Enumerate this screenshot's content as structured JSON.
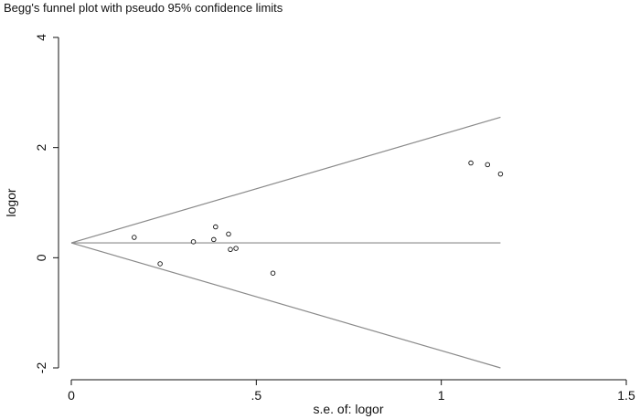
{
  "chart_data": {
    "type": "scatter",
    "title": "Begg's funnel plot with pseudo 95% confidence limits",
    "xlabel": "s.e. of: logor",
    "ylabel": "logor",
    "xlim": [
      0,
      1.5
    ],
    "ylim": [
      -2,
      4
    ],
    "x_ticks": [
      0,
      0.5,
      1,
      1.5
    ],
    "x_tick_labels": [
      "0",
      ".5",
      "1",
      "1.5"
    ],
    "y_ticks": [
      -2,
      0,
      2,
      4
    ],
    "y_tick_labels": [
      "-2",
      "0",
      "2",
      "4"
    ],
    "pooled_estimate": 0.27,
    "funnel_max_se": 1.16,
    "funnel_upper_end": 2.55,
    "funnel_lower_end": -2.0,
    "points": [
      {
        "x": 0.17,
        "y": 0.37
      },
      {
        "x": 0.24,
        "y": -0.11
      },
      {
        "x": 0.33,
        "y": 0.29
      },
      {
        "x": 0.385,
        "y": 0.33
      },
      {
        "x": 0.39,
        "y": 0.56
      },
      {
        "x": 0.425,
        "y": 0.43
      },
      {
        "x": 0.43,
        "y": 0.15
      },
      {
        "x": 0.445,
        "y": 0.17
      },
      {
        "x": 0.545,
        "y": -0.28
      },
      {
        "x": 1.08,
        "y": 1.72
      },
      {
        "x": 1.125,
        "y": 1.69
      },
      {
        "x": 1.16,
        "y": 1.52
      }
    ],
    "grid": false,
    "legend": "none"
  }
}
